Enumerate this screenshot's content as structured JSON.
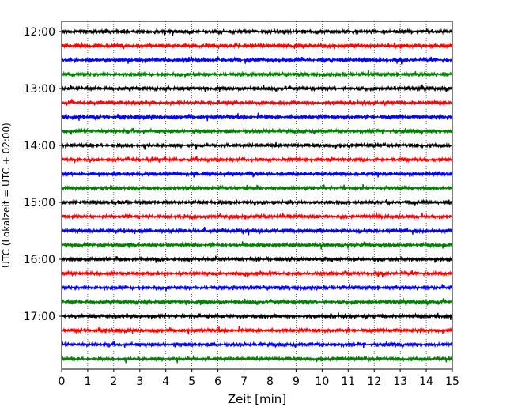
{
  "chart_data": {
    "type": "line",
    "title": "",
    "xlabel": "Zeit  [min]",
    "ylabel": "UTC (Lokalzeit = UTC + 02:00)",
    "xlim": [
      0,
      15
    ],
    "x_ticks": [
      0,
      1,
      2,
      3,
      4,
      5,
      6,
      7,
      8,
      9,
      10,
      11,
      12,
      13,
      14,
      15
    ],
    "x_tick_labels": [
      "0",
      "1",
      "2",
      "3",
      "4",
      "5",
      "6",
      "7",
      "8",
      "9",
      "10",
      "11",
      "12",
      "13",
      "14",
      "15"
    ],
    "y_tick_labels": [
      "12:00",
      "13:00",
      "14:00",
      "15:00",
      "16:00",
      "17:00"
    ],
    "traces_per_hour": 4,
    "minutes_per_trace": 15,
    "vertical_grid": "dotted",
    "legend": "none",
    "colors": [
      "#000000",
      "#ff0000",
      "#0000ff",
      "#008000"
    ],
    "series": [
      {
        "start": "12:00",
        "color": "#000000"
      },
      {
        "start": "12:15",
        "color": "#ff0000"
      },
      {
        "start": "12:30",
        "color": "#0000ff"
      },
      {
        "start": "12:45",
        "color": "#008000"
      },
      {
        "start": "13:00",
        "color": "#000000"
      },
      {
        "start": "13:15",
        "color": "#ff0000"
      },
      {
        "start": "13:30",
        "color": "#0000ff"
      },
      {
        "start": "13:45",
        "color": "#008000"
      },
      {
        "start": "14:00",
        "color": "#000000"
      },
      {
        "start": "14:15",
        "color": "#ff0000"
      },
      {
        "start": "14:30",
        "color": "#0000ff"
      },
      {
        "start": "14:45",
        "color": "#008000"
      },
      {
        "start": "15:00",
        "color": "#000000"
      },
      {
        "start": "15:15",
        "color": "#ff0000"
      },
      {
        "start": "15:30",
        "color": "#0000ff"
      },
      {
        "start": "15:45",
        "color": "#008000"
      },
      {
        "start": "16:00",
        "color": "#000000"
      },
      {
        "start": "16:15",
        "color": "#ff0000"
      },
      {
        "start": "16:30",
        "color": "#0000ff"
      },
      {
        "start": "16:45",
        "color": "#008000"
      },
      {
        "start": "17:00",
        "color": "#000000"
      },
      {
        "start": "17:15",
        "color": "#ff0000"
      },
      {
        "start": "17:30",
        "color": "#0000ff"
      },
      {
        "start": "17:45",
        "color": "#008000"
      }
    ]
  }
}
